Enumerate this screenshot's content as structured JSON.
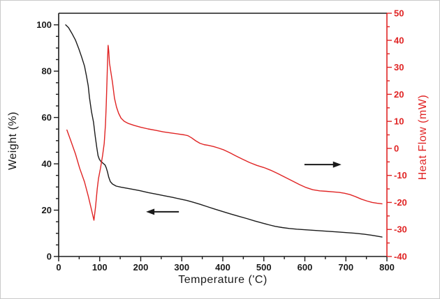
{
  "figure": {
    "background": "#ffffff",
    "frame_color": "#c9c9c9"
  },
  "chart_data": {
    "type": "line",
    "title": "",
    "xlabel": "Temperature ('C)",
    "ylabel_left": "Weight (%)",
    "ylabel_right": "Heat Flow (mW)",
    "x_range": [
      0,
      800
    ],
    "y_left_range": [
      0,
      105
    ],
    "y_right_range": [
      -40,
      50
    ],
    "x_ticks": [
      0,
      100,
      200,
      300,
      400,
      500,
      600,
      700,
      800
    ],
    "x_minor_step": 50,
    "y_left_ticks": [
      0,
      20,
      40,
      60,
      80,
      100
    ],
    "y_left_minor_step": 5,
    "y_right_ticks": [
      -40,
      -30,
      -20,
      -10,
      0,
      10,
      20,
      30,
      40,
      50
    ],
    "y_right_minor_step": 5,
    "grid": false,
    "legend_position": "none",
    "colors": {
      "left_axis": "#1a1a1a",
      "bottom_axis": "#1a1a1a",
      "right_axis": "#e02424",
      "weight_series": "#1a1a1a",
      "heat_flow_series": "#e02424",
      "arrow": "#1a1a1a"
    },
    "series": [
      {
        "name": "weight",
        "axis": "left",
        "color": "#1a1a1a",
        "points": [
          [
            17,
            100
          ],
          [
            24,
            98.8
          ],
          [
            32,
            96.4
          ],
          [
            41,
            93.4
          ],
          [
            49,
            89.7
          ],
          [
            56,
            86.1
          ],
          [
            63,
            82.2
          ],
          [
            68,
            77.6
          ],
          [
            72,
            73.7
          ],
          [
            75,
            68.6
          ],
          [
            80,
            62.5
          ],
          [
            85,
            58
          ],
          [
            89,
            52
          ],
          [
            93,
            47
          ],
          [
            96,
            43.5
          ],
          [
            99,
            42
          ],
          [
            103,
            41
          ],
          [
            108,
            40.3
          ],
          [
            113,
            39.5
          ],
          [
            116,
            38.3
          ],
          [
            119,
            36.5
          ],
          [
            122,
            34.2
          ],
          [
            126,
            32.3
          ],
          [
            131,
            31.3
          ],
          [
            140,
            30.4
          ],
          [
            152,
            29.9
          ],
          [
            165,
            29.5
          ],
          [
            180,
            29
          ],
          [
            198,
            28.4
          ],
          [
            218,
            27.6
          ],
          [
            238,
            26.9
          ],
          [
            258,
            26.2
          ],
          [
            278,
            25.5
          ],
          [
            296,
            24.8
          ],
          [
            312,
            24.2
          ],
          [
            328,
            23.4
          ],
          [
            345,
            22.5
          ],
          [
            362,
            21.5
          ],
          [
            380,
            20.5
          ],
          [
            398,
            19.5
          ],
          [
            418,
            18.4
          ],
          [
            438,
            17.4
          ],
          [
            458,
            16.4
          ],
          [
            478,
            15.3
          ],
          [
            495,
            14.5
          ],
          [
            512,
            13.7
          ],
          [
            528,
            13
          ],
          [
            545,
            12.5
          ],
          [
            562,
            12.1
          ],
          [
            580,
            11.8
          ],
          [
            605,
            11.5
          ],
          [
            630,
            11.2
          ],
          [
            655,
            10.9
          ],
          [
            680,
            10.6
          ],
          [
            703,
            10.3
          ],
          [
            725,
            10
          ],
          [
            745,
            9.6
          ],
          [
            762,
            9.2
          ],
          [
            776,
            8.8
          ],
          [
            788,
            8.4
          ]
        ]
      },
      {
        "name": "heat-flow",
        "axis": "right",
        "color": "#e02424",
        "points": [
          [
            20,
            6.8
          ],
          [
            29,
            3.1
          ],
          [
            41,
            -2.1
          ],
          [
            51,
            -7.3
          ],
          [
            63,
            -12.4
          ],
          [
            72,
            -17.6
          ],
          [
            80,
            -22.7
          ],
          [
            86,
            -26.6
          ],
          [
            90,
            -21.4
          ],
          [
            94,
            -15
          ],
          [
            97,
            -11.2
          ],
          [
            102,
            -7.3
          ],
          [
            107,
            -2.6
          ],
          [
            111,
            1.8
          ],
          [
            114,
            8.8
          ],
          [
            116,
            16
          ],
          [
            118,
            26
          ],
          [
            119.5,
            34
          ],
          [
            120.5,
            38.1
          ],
          [
            122,
            36
          ],
          [
            124,
            31.5
          ],
          [
            128,
            27.5
          ],
          [
            131,
            24.5
          ],
          [
            136,
            18.6
          ],
          [
            141,
            15.3
          ],
          [
            146,
            13
          ],
          [
            152,
            11.2
          ],
          [
            160,
            10
          ],
          [
            170,
            9.2
          ],
          [
            184,
            8.5
          ],
          [
            200,
            7.8
          ],
          [
            218,
            7.2
          ],
          [
            236,
            6.7
          ],
          [
            255,
            6.1
          ],
          [
            274,
            5.7
          ],
          [
            292,
            5.3
          ],
          [
            306,
            5
          ],
          [
            315,
            4.7
          ],
          [
            324,
            3.9
          ],
          [
            334,
            2.8
          ],
          [
            344,
            1.9
          ],
          [
            354,
            1.4
          ],
          [
            365,
            1.1
          ],
          [
            377,
            0.7
          ],
          [
            390,
            0.1
          ],
          [
            403,
            -0.6
          ],
          [
            417,
            -1.6
          ],
          [
            432,
            -2.8
          ],
          [
            448,
            -4
          ],
          [
            465,
            -5.2
          ],
          [
            483,
            -6.3
          ],
          [
            500,
            -7.1
          ],
          [
            517,
            -8.1
          ],
          [
            534,
            -9.3
          ],
          [
            552,
            -10.7
          ],
          [
            570,
            -12.1
          ],
          [
            587,
            -13.4
          ],
          [
            603,
            -14.5
          ],
          [
            619,
            -15.3
          ],
          [
            636,
            -15.7
          ],
          [
            653,
            -15.9
          ],
          [
            669,
            -16.1
          ],
          [
            684,
            -16.3
          ],
          [
            697,
            -16.6
          ],
          [
            710,
            -17.1
          ],
          [
            724,
            -17.9
          ],
          [
            738,
            -18.8
          ],
          [
            752,
            -19.5
          ],
          [
            764,
            -20
          ],
          [
            776,
            -20.3
          ],
          [
            788,
            -20.5
          ]
        ]
      }
    ],
    "annotations": [
      {
        "name": "weight-curve-arrow",
        "shape": "arrow",
        "axis": "left",
        "from": [
          293,
          19.3
        ],
        "to": [
          213,
          19.3
        ],
        "color": "#1a1a1a"
      },
      {
        "name": "heat-flow-curve-arrow",
        "shape": "arrow",
        "axis": "right",
        "from": [
          599,
          -6
        ],
        "to": [
          689,
          -6
        ],
        "color": "#1a1a1a"
      }
    ]
  }
}
